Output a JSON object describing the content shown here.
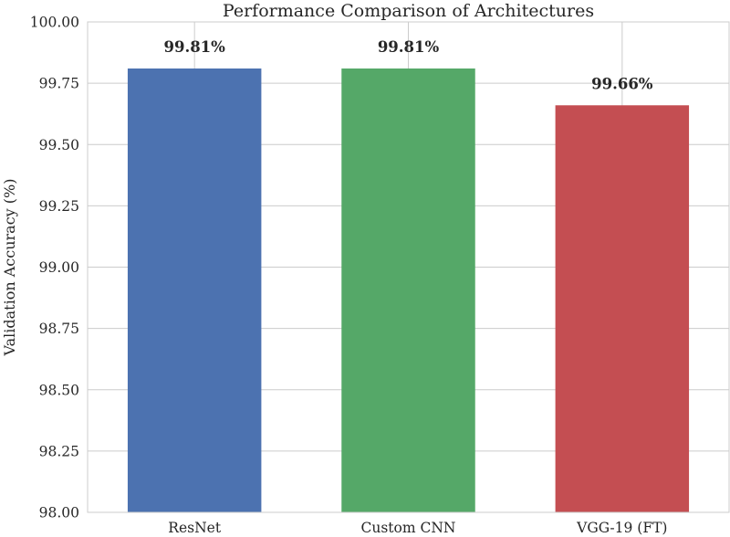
{
  "chart_data": {
    "type": "bar",
    "title": "Performance Comparison of Architectures",
    "xlabel": "",
    "ylabel": "Validation Accuracy (%)",
    "categories": [
      "ResNet",
      "Custom CNN",
      "VGG-19 (FT)"
    ],
    "values": [
      99.81,
      99.81,
      99.66
    ],
    "data_labels": [
      "99.81%",
      "99.81%",
      "99.66%"
    ],
    "colors": [
      "#4c72b0",
      "#55a868",
      "#c44e52"
    ],
    "ylim": [
      98.0,
      100.0
    ],
    "yticks": [
      98.0,
      98.25,
      98.5,
      98.75,
      99.0,
      99.25,
      99.5,
      99.75,
      100.0
    ],
    "ytick_labels": [
      "98.00",
      "98.25",
      "98.50",
      "98.75",
      "99.00",
      "99.25",
      "99.50",
      "99.75",
      "100.00"
    ],
    "grid": true,
    "legend": "none"
  }
}
